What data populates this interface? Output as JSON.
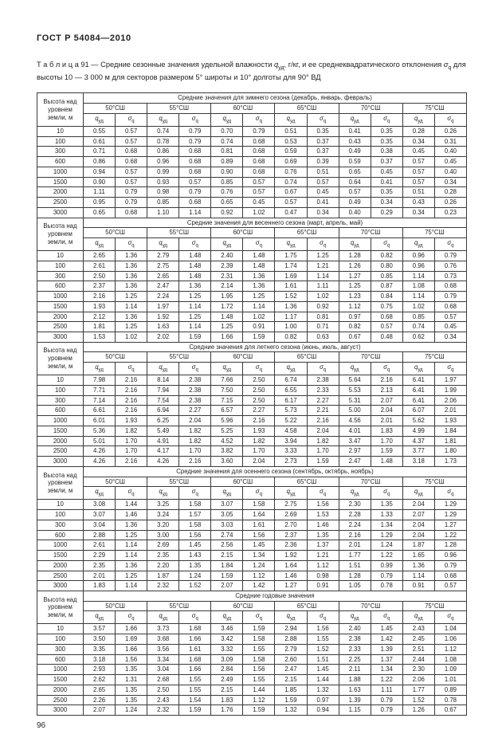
{
  "page": {
    "header": "ГОСТ Р 54084—2010",
    "page_number": "96"
  },
  "caption": {
    "parts": [
      {
        "t": "Т а б л и ц а 91 — Средние сезонные значения удельной влажности "
      },
      {
        "t": "q",
        "i": true
      },
      {
        "t": "уд",
        "sub": true
      },
      {
        "t": ", г/кг, и ее среднеквадратического отклонения "
      },
      {
        "t": "σ",
        "i": true
      },
      {
        "t": "q",
        "sub": true
      },
      {
        "t": " для высоты 10 — 3 000 м для секторов размером 5° широты и 10° долготы для 90° ВД"
      }
    ]
  },
  "table": {
    "height_header": "Высота над уровнем земли, м",
    "latitudes": [
      "50°СШ",
      "55°СШ",
      "60°СШ",
      "65°СШ",
      "70°СШ",
      "75°СШ"
    ],
    "symbols": {
      "q": "q",
      "q_sub": "уд",
      "sigma": "σ",
      "sigma_sub": "q"
    },
    "heights": [
      "10",
      "100",
      "300",
      "600",
      "1000",
      "1500",
      "2000",
      "2500",
      "3000"
    ],
    "sections": [
      {
        "title": "Средние значения для зимнего сезона (декабрь, январь, февраль)",
        "rows": [
          [
            "0.55",
            "0.57",
            "0.74",
            "0.79",
            "0.70",
            "0.79",
            "0.51",
            "0.35",
            "0.41",
            "0.35",
            "0.28",
            "0.26"
          ],
          [
            "0.61",
            "0.57",
            "0.78",
            "0.79",
            "0.74",
            "0.68",
            "0.53",
            "0.37",
            "0.43",
            "0.35",
            "0.34",
            "0.31"
          ],
          [
            "0.71",
            "0.68",
            "0.86",
            "0.68",
            "0.81",
            "0.68",
            "0.59",
            "0.37",
            "0.49",
            "0.38",
            "0.45",
            "0.40"
          ],
          [
            "0.86",
            "0.68",
            "0.96",
            "0.68",
            "0.89",
            "0.68",
            "0.69",
            "0.39",
            "0.59",
            "0.37",
            "0.57",
            "0.45"
          ],
          [
            "0.94",
            "0.57",
            "0.99",
            "0.68",
            "0.90",
            "0.68",
            "0.76",
            "0.51",
            "0.65",
            "0.45",
            "0.57",
            "0.40"
          ],
          [
            "0.90",
            "0.57",
            "0.93",
            "0.57",
            "0.85",
            "0.57",
            "0.74",
            "0.57",
            "0.64",
            "0.41",
            "0.57",
            "0.34"
          ],
          [
            "1.11",
            "0.79",
            "0.98",
            "0.79",
            "0.76",
            "0.57",
            "0.67",
            "0.45",
            "0.57",
            "0.35",
            "0.51",
            "0.28"
          ],
          [
            "0.95",
            "0.79",
            "0.85",
            "0.68",
            "0.65",
            "0.45",
            "0.57",
            "0.41",
            "0.49",
            "0.34",
            "0.43",
            "0.26"
          ],
          [
            "0.65",
            "0.68",
            "1.10",
            "1.14",
            "0.92",
            "1.02",
            "0.47",
            "0.34",
            "0.40",
            "0.29",
            "0.34",
            "0.23"
          ]
        ]
      },
      {
        "title": "Средние значения для весеннего сезона (март, апрель, май)",
        "rows": [
          [
            "2.65",
            "1.36",
            "2.79",
            "1.48",
            "2.40",
            "1.48",
            "1.75",
            "1.25",
            "1.28",
            "0.82",
            "0.96",
            "0.79"
          ],
          [
            "2.61",
            "1.36",
            "2.75",
            "1.48",
            "2.39",
            "1.48",
            "1.74",
            "1.21",
            "1.26",
            "0.80",
            "0.96",
            "0.76"
          ],
          [
            "2.50",
            "1.36",
            "2.65",
            "1.48",
            "2.31",
            "1.36",
            "1.69",
            "1.14",
            "1.27",
            "0.85",
            "1.14",
            "0.73"
          ],
          [
            "2.37",
            "1.36",
            "2.47",
            "1.36",
            "2.14",
            "1.36",
            "1.61",
            "1.11",
            "1.25",
            "0.87",
            "1.08",
            "0.68"
          ],
          [
            "2.16",
            "1.25",
            "2.24",
            "1.25",
            "1.95",
            "1.25",
            "1.52",
            "1.02",
            "1.23",
            "0.84",
            "1.14",
            "0.79"
          ],
          [
            "1.93",
            "1.14",
            "1.97",
            "1.14",
            "1.72",
            "1.14",
            "1.36",
            "0.92",
            "1.12",
            "0.75",
            "1.02",
            "0.68"
          ],
          [
            "2.12",
            "1.36",
            "1.92",
            "1.25",
            "1.48",
            "1.02",
            "1.17",
            "0.81",
            "0.97",
            "0.68",
            "0.85",
            "0.57"
          ],
          [
            "1.81",
            "1.25",
            "1.63",
            "1.14",
            "1.25",
            "0.91",
            "1.00",
            "0.71",
            "0.82",
            "0.57",
            "0.74",
            "0.45"
          ],
          [
            "1.53",
            "1.02",
            "2.02",
            "1.59",
            "1.66",
            "1.59",
            "0.82",
            "0.63",
            "0.67",
            "0.48",
            "0.62",
            "0.34"
          ]
        ]
      },
      {
        "title": "Средние значения для летнего сезона (июнь, июль, август)",
        "rows": [
          [
            "7.98",
            "2.16",
            "8.14",
            "2.38",
            "7.66",
            "2.50",
            "6.74",
            "2.38",
            "5.64",
            "2.16",
            "6.41",
            "1.97"
          ],
          [
            "7.71",
            "2.16",
            "7.94",
            "2.38",
            "7.50",
            "2.50",
            "6.55",
            "2.33",
            "5.53",
            "2.13",
            "6.41",
            "1.99"
          ],
          [
            "7.14",
            "2.16",
            "7.54",
            "2.38",
            "7.15",
            "2.50",
            "6.17",
            "2.27",
            "5.31",
            "2.07",
            "6.41",
            "2.06"
          ],
          [
            "6.61",
            "2.16",
            "6.94",
            "2.27",
            "6.57",
            "2.27",
            "5.73",
            "2.21",
            "5.00",
            "2.04",
            "6.07",
            "2.01"
          ],
          [
            "6.01",
            "1.93",
            "6.25",
            "2.04",
            "5.96",
            "2.16",
            "5.22",
            "2.16",
            "4.56",
            "2.01",
            "5.62",
            "1.93"
          ],
          [
            "5.36",
            "1.82",
            "5.49",
            "1.82",
            "5.25",
            "1.93",
            "4.58",
            "2.04",
            "4.01",
            "1.83",
            "4.99",
            "1.84"
          ],
          [
            "5.01",
            "1.70",
            "4.91",
            "1.82",
            "4.52",
            "1.82",
            "3.94",
            "1.82",
            "3.47",
            "1.70",
            "4.37",
            "1.81"
          ],
          [
            "4.26",
            "1.70",
            "4.17",
            "1.70",
            "3.82",
            "1.70",
            "3.33",
            "1.70",
            "2.97",
            "1.59",
            "3.77",
            "1.80"
          ],
          [
            "4.26",
            "2.16",
            "4.26",
            "2.16",
            "3.60",
            "2.04",
            "2.73",
            "1.59",
            "2.47",
            "1.48",
            "3.18",
            "1.73"
          ]
        ]
      },
      {
        "title": "Средние значения для осеннего сезона (сентябрь, октябрь, ноябрь)",
        "rows": [
          [
            "3.08",
            "1.44",
            "3.25",
            "1.58",
            "3.07",
            "1.58",
            "2.75",
            "1.56",
            "2.30",
            "1.35",
            "2.04",
            "1.29"
          ],
          [
            "3.07",
            "1.46",
            "3.24",
            "1.57",
            "3.05",
            "1.64",
            "2.69",
            "1.53",
            "2.28",
            "1.33",
            "2.07",
            "1.29"
          ],
          [
            "3.04",
            "1.36",
            "3.20",
            "1.58",
            "3.03",
            "1.61",
            "2.70",
            "1.46",
            "2.24",
            "1.34",
            "2.04",
            "1.27"
          ],
          [
            "2.88",
            "1.25",
            "3.00",
            "1.56",
            "2.74",
            "1.56",
            "2.37",
            "1.35",
            "2.16",
            "1.29",
            "2.04",
            "1.22"
          ],
          [
            "2.61",
            "1.14",
            "2.69",
            "1.45",
            "2.56",
            "1.45",
            "2.36",
            "1.37",
            "2.01",
            "1.24",
            "1.87",
            "1.28"
          ],
          [
            "2.29",
            "1.14",
            "2.35",
            "1.43",
            "2.15",
            "1.34",
            "1.92",
            "1.21",
            "1.77",
            "1.22",
            "1.65",
            "0.96"
          ],
          [
            "2.35",
            "1.36",
            "2.20",
            "1.35",
            "1.84",
            "1.24",
            "1.64",
            "1.12",
            "1.51",
            "0.99",
            "1.36",
            "0.79"
          ],
          [
            "2.01",
            "1.25",
            "1.87",
            "1.24",
            "1.59",
            "1.12",
            "1.46",
            "0.98",
            "1.28",
            "0.79",
            "1.14",
            "0.68"
          ],
          [
            "1.83",
            "1.14",
            "2.32",
            "1.52",
            "2.07",
            "1.42",
            "1.27",
            "0.91",
            "1.05",
            "0.78",
            "0.91",
            "0.57"
          ]
        ]
      },
      {
        "title": "Средние годовые значения",
        "rows": [
          [
            "3.57",
            "1.66",
            "3.73",
            "1.68",
            "3.46",
            "1.59",
            "2.94",
            "1.56",
            "2.40",
            "1.45",
            "2.43",
            "1.04"
          ],
          [
            "3.50",
            "1.69",
            "3.68",
            "1.66",
            "3.42",
            "1.58",
            "2.88",
            "1.55",
            "2.38",
            "1.42",
            "2.45",
            "1.06"
          ],
          [
            "3.35",
            "1.66",
            "3.56",
            "1.61",
            "3.32",
            "1.55",
            "2.79",
            "1.52",
            "2.33",
            "1.39",
            "2.51",
            "1.12"
          ],
          [
            "3.18",
            "1.56",
            "3.34",
            "1.68",
            "3.09",
            "1.58",
            "2.60",
            "1.51",
            "2.25",
            "1.37",
            "2.44",
            "1.08"
          ],
          [
            "2.93",
            "1.35",
            "3.04",
            "1.66",
            "2.84",
            "1.56",
            "2.47",
            "1.45",
            "2.11",
            "1.34",
            "2.30",
            "1.09"
          ],
          [
            "2.62",
            "1.31",
            "2.68",
            "1.55",
            "2.49",
            "1.55",
            "2.15",
            "1.44",
            "1.88",
            "1.22",
            "2.06",
            "1.01"
          ],
          [
            "2.65",
            "1.35",
            "2.50",
            "1.55",
            "2.15",
            "1.44",
            "1.85",
            "1.32",
            "1.63",
            "1.11",
            "1.77",
            "0.89"
          ],
          [
            "2.26",
            "1.35",
            "2.43",
            "1.54",
            "1.83",
            "1.12",
            "1.59",
            "0.97",
            "1.39",
            "0.79",
            "1.52",
            "0.78"
          ],
          [
            "2.07",
            "1.24",
            "2.32",
            "1.59",
            "1.76",
            "1.59",
            "1.32",
            "0.94",
            "1.15",
            "0.79",
            "1.26",
            "0.67"
          ]
        ]
      }
    ]
  }
}
